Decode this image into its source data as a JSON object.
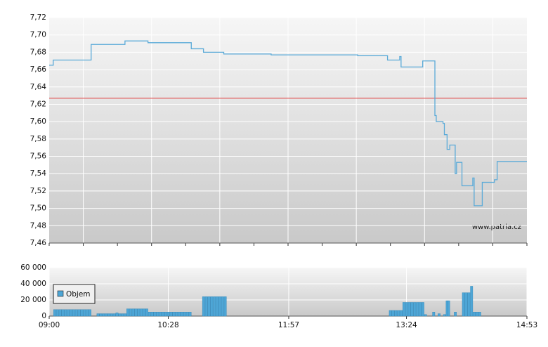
{
  "chart_data": [
    {
      "type": "line",
      "step": "post",
      "color": "#5aaad8",
      "reference_line": 7.627,
      "reference_color": "#e04040",
      "watermark": "www.patria.cz",
      "xlim": [
        "09:00",
        "14:53"
      ],
      "ylim": [
        7.46,
        7.72
      ],
      "yticks": [
        {
          "value": 7.46,
          "label": "7,46"
        },
        {
          "value": 7.48,
          "label": "7,48"
        },
        {
          "value": 7.5,
          "label": "7,50"
        },
        {
          "value": 7.52,
          "label": "7,52"
        },
        {
          "value": 7.54,
          "label": "7,54"
        },
        {
          "value": 7.56,
          "label": "7,56"
        },
        {
          "value": 7.58,
          "label": "7,58"
        },
        {
          "value": 7.6,
          "label": "7,60"
        },
        {
          "value": 7.62,
          "label": "7,62"
        },
        {
          "value": 7.64,
          "label": "7,64"
        },
        {
          "value": 7.66,
          "label": "7,66"
        },
        {
          "value": 7.68,
          "label": "7,68"
        },
        {
          "value": 7.7,
          "label": "7,70"
        },
        {
          "value": 7.72,
          "label": "7,72"
        }
      ],
      "grid": true,
      "x": [
        "09:00",
        "09:03",
        "09:31",
        "09:56",
        "10:13",
        "10:45",
        "10:54",
        "11:09",
        "11:44",
        "12:48",
        "13:10",
        "13:19",
        "13:20",
        "13:36",
        "13:45",
        "13:46",
        "13:51",
        "13:52",
        "13:54",
        "13:56",
        "14:00",
        "14:01",
        "14:05",
        "14:13",
        "14:14",
        "14:20",
        "14:29",
        "14:31",
        "14:53"
      ],
      "values": [
        7.665,
        7.671,
        7.689,
        7.693,
        7.691,
        7.684,
        7.68,
        7.678,
        7.677,
        7.676,
        7.671,
        7.675,
        7.663,
        7.67,
        7.607,
        7.6,
        7.598,
        7.585,
        7.568,
        7.573,
        7.54,
        7.553,
        7.526,
        7.535,
        7.503,
        7.53,
        7.533,
        7.554,
        7.554
      ]
    },
    {
      "type": "bar",
      "color": "#4ea6d6",
      "legend": "Objem",
      "xlim": [
        "09:00",
        "14:53"
      ],
      "xticks": [
        "09:00",
        "10:28",
        "11:57",
        "13:24",
        "14:53"
      ],
      "ylim": [
        0,
        60000
      ],
      "yticks": [
        0,
        {
          "value": 20000,
          "label": "20 000"
        },
        {
          "value": 40000,
          "label": "40 000"
        },
        {
          "value": 60000,
          "label": "60 000"
        }
      ],
      "grid": true,
      "x": [
        "09:04",
        "09:06",
        "09:08",
        "09:10",
        "09:12",
        "09:14",
        "09:16",
        "09:18",
        "09:20",
        "09:22",
        "09:24",
        "09:26",
        "09:28",
        "09:30",
        "09:36",
        "09:38",
        "09:40",
        "09:42",
        "09:44",
        "09:46",
        "09:48",
        "09:50",
        "09:52",
        "09:54",
        "09:56",
        "09:58",
        "10:00",
        "10:02",
        "10:04",
        "10:06",
        "10:08",
        "10:10",
        "10:12",
        "10:14",
        "10:16",
        "10:18",
        "10:20",
        "10:22",
        "10:24",
        "10:26",
        "10:28",
        "10:30",
        "10:32",
        "10:34",
        "10:36",
        "10:38",
        "10:40",
        "10:42",
        "10:44",
        "10:54",
        "10:56",
        "10:58",
        "11:00",
        "11:02",
        "11:04",
        "11:06",
        "11:08",
        "11:10",
        "13:12",
        "13:14",
        "13:16",
        "13:18",
        "13:20",
        "13:22",
        "13:24",
        "13:26",
        "13:28",
        "13:30",
        "13:32",
        "13:34",
        "13:36",
        "13:38",
        "13:44",
        "13:48",
        "13:52",
        "13:54",
        "13:55",
        "14:00",
        "14:06",
        "14:08",
        "14:10",
        "14:12",
        "14:14",
        "14:16",
        "14:18"
      ],
      "values": [
        8000,
        8000,
        8000,
        8000,
        8000,
        8000,
        8000,
        8000,
        8000,
        8000,
        8000,
        8000,
        8000,
        8000,
        3000,
        3000,
        3000,
        3000,
        3000,
        3000,
        3000,
        4000,
        3000,
        3000,
        3000,
        9000,
        9000,
        9000,
        9000,
        9000,
        9000,
        9000,
        9000,
        5000,
        5000,
        5000,
        5000,
        5000,
        5000,
        5000,
        5000,
        5000,
        5000,
        5000,
        5000,
        5000,
        5000,
        5000,
        5000,
        24000,
        24000,
        24000,
        24000,
        24000,
        24000,
        24000,
        24000,
        24000,
        7000,
        7000,
        7000,
        7000,
        7000,
        17000,
        17000,
        17000,
        17000,
        17000,
        17000,
        17000,
        17000,
        2000,
        5000,
        3000,
        2000,
        19000,
        19000,
        5000,
        29000,
        29000,
        29000,
        37000,
        5000,
        5000,
        5000
      ]
    }
  ]
}
